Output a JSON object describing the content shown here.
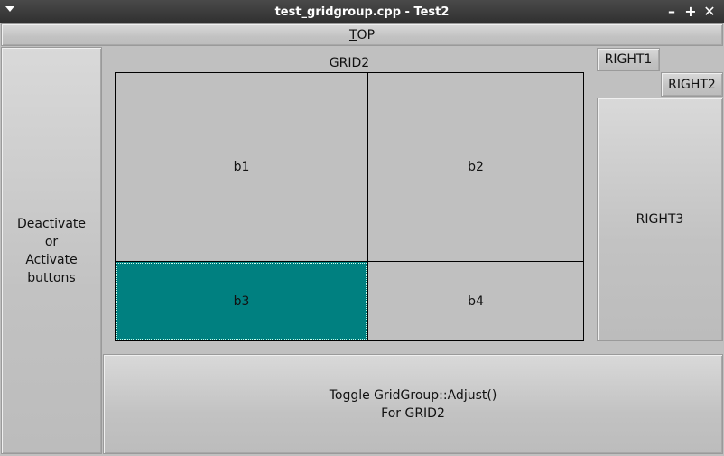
{
  "window": {
    "title": "test_gridgroup.cpp - Test2",
    "controls": {
      "minimize": "–",
      "maximize": "+",
      "close": "✕"
    }
  },
  "top_button": {
    "label_mn": "T",
    "label_rest": "OP"
  },
  "left_button": {
    "lines": [
      "Deactivate",
      "or",
      "Activate",
      "buttons"
    ]
  },
  "grid2": {
    "label": "GRID2",
    "cells": {
      "b1": "b1",
      "b2_mn": "b",
      "b2_rest": "2",
      "b3": "b3",
      "b4": "b4"
    },
    "selected_color": "#008080"
  },
  "right": {
    "right1": "RIGHT1",
    "right2": "RIGHT2",
    "right3": "RIGHT3"
  },
  "bottom_button": {
    "lines": [
      "Toggle GridGroup::Adjust()",
      "For GRID2"
    ]
  }
}
